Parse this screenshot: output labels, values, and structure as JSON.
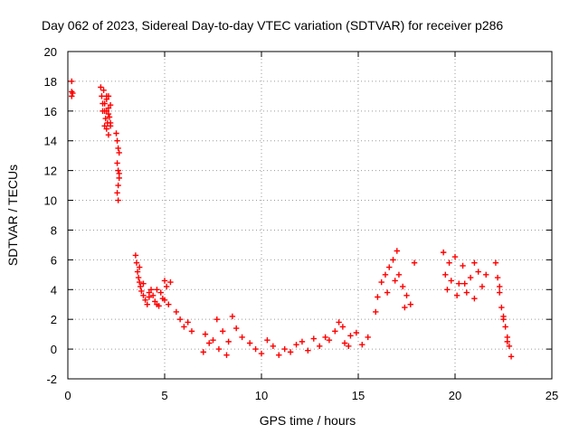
{
  "chart_data": {
    "type": "scatter",
    "title": "Day 062 of 2023, Sidereal Day-to-day VTEC variation (SDTVAR) for receiver p286",
    "xlabel": "GPS time / hours",
    "ylabel": "SDTVAR / TECUs",
    "xlim": [
      0,
      25
    ],
    "ylim": [
      -2,
      20
    ],
    "x_ticks": [
      0,
      5,
      10,
      15,
      20,
      25
    ],
    "y_ticks": [
      -2,
      0,
      2,
      4,
      6,
      8,
      10,
      12,
      14,
      16,
      18,
      20
    ],
    "grid": true,
    "marker": "plus",
    "color": "#ff0000",
    "series": [
      {
        "name": "SDTVAR",
        "x": [
          0.2,
          0.2,
          0.2,
          0.25,
          1.7,
          1.75,
          1.8,
          1.85,
          1.9,
          1.95,
          2.0,
          2.05,
          2.1,
          2.15,
          2.2,
          1.8,
          1.9,
          2.0,
          2.1,
          2.2,
          1.9,
          2.0,
          2.1,
          2.2,
          2.0,
          2.1,
          2.5,
          2.55,
          2.6,
          2.65,
          2.55,
          2.6,
          2.65,
          2.6,
          2.55,
          2.6,
          2.65,
          3.5,
          3.55,
          3.6,
          3.65,
          3.7,
          3.75,
          3.8,
          3.9,
          4.0,
          4.1,
          4.2,
          4.3,
          4.4,
          4.5,
          4.6,
          4.7,
          4.8,
          4.9,
          5.0,
          5.1,
          5.2,
          3.7,
          3.9,
          4.2,
          4.6,
          5.0,
          5.3,
          5.6,
          5.8,
          6.0,
          6.2,
          6.4,
          7.0,
          7.1,
          7.3,
          7.5,
          7.7,
          8.0,
          8.3,
          8.5,
          8.7,
          9.0,
          8.2,
          7.8,
          9.4,
          9.7,
          10.0,
          10.3,
          10.6,
          10.9,
          11.2,
          11.5,
          11.8,
          12.1,
          12.4,
          12.7,
          13.0,
          13.3,
          13.5,
          13.8,
          14.0,
          14.3,
          14.6,
          14.9,
          15.2,
          15.5,
          14.2,
          14.5,
          15.9,
          16.0,
          16.2,
          16.4,
          16.6,
          16.8,
          17.0,
          17.1,
          17.3,
          17.5,
          17.7,
          17.9,
          16.5,
          16.9,
          17.4,
          19.4,
          19.5,
          19.6,
          19.7,
          19.8,
          20.0,
          20.2,
          20.4,
          20.6,
          20.8,
          21.0,
          21.2,
          21.4,
          21.6,
          20.1,
          20.5,
          21.0,
          22.1,
          22.2,
          22.3,
          22.4,
          22.5,
          22.6,
          22.7,
          22.8,
          22.9,
          22.3,
          22.5,
          22.7
        ],
        "y": [
          18.0,
          17.3,
          17.0,
          17.2,
          17.6,
          17.0,
          16.5,
          17.4,
          16.0,
          15.5,
          16.8,
          15.2,
          16.2,
          15.6,
          15.0,
          16.0,
          16.5,
          17.0,
          15.8,
          16.4,
          15.0,
          14.8,
          14.4,
          15.2,
          16.0,
          17.0,
          14.5,
          14.0,
          13.5,
          13.2,
          12.5,
          12.0,
          11.5,
          11.0,
          10.5,
          10.0,
          11.8,
          6.3,
          5.8,
          5.2,
          4.8,
          4.5,
          4.2,
          3.9,
          3.6,
          3.3,
          3.0,
          3.5,
          4.0,
          3.6,
          3.2,
          3.0,
          2.9,
          3.8,
          3.4,
          4.6,
          4.2,
          3.0,
          5.5,
          4.4,
          3.8,
          4.0,
          3.3,
          4.5,
          2.5,
          2.0,
          1.5,
          1.8,
          1.2,
          -0.2,
          1.0,
          0.4,
          0.6,
          2.0,
          1.2,
          0.5,
          2.2,
          1.4,
          0.8,
          -0.4,
          0.0,
          0.4,
          0.0,
          -0.3,
          0.6,
          0.2,
          -0.4,
          0.0,
          -0.2,
          0.3,
          0.5,
          -0.1,
          0.7,
          0.2,
          0.8,
          0.6,
          1.2,
          1.8,
          0.4,
          0.9,
          1.1,
          0.3,
          0.8,
          1.5,
          0.2,
          2.5,
          3.5,
          4.5,
          5.0,
          5.5,
          6.0,
          6.6,
          5.0,
          4.2,
          3.6,
          3.0,
          5.8,
          3.8,
          4.6,
          2.8,
          6.5,
          5.0,
          4.0,
          5.8,
          4.6,
          6.2,
          4.4,
          5.6,
          3.8,
          4.8,
          3.4,
          5.2,
          4.2,
          5.0,
          3.6,
          4.4,
          5.8,
          5.8,
          4.8,
          3.8,
          2.8,
          2.2,
          1.5,
          0.8,
          0.2,
          -0.5,
          4.2,
          2.0,
          0.5
        ]
      }
    ]
  }
}
